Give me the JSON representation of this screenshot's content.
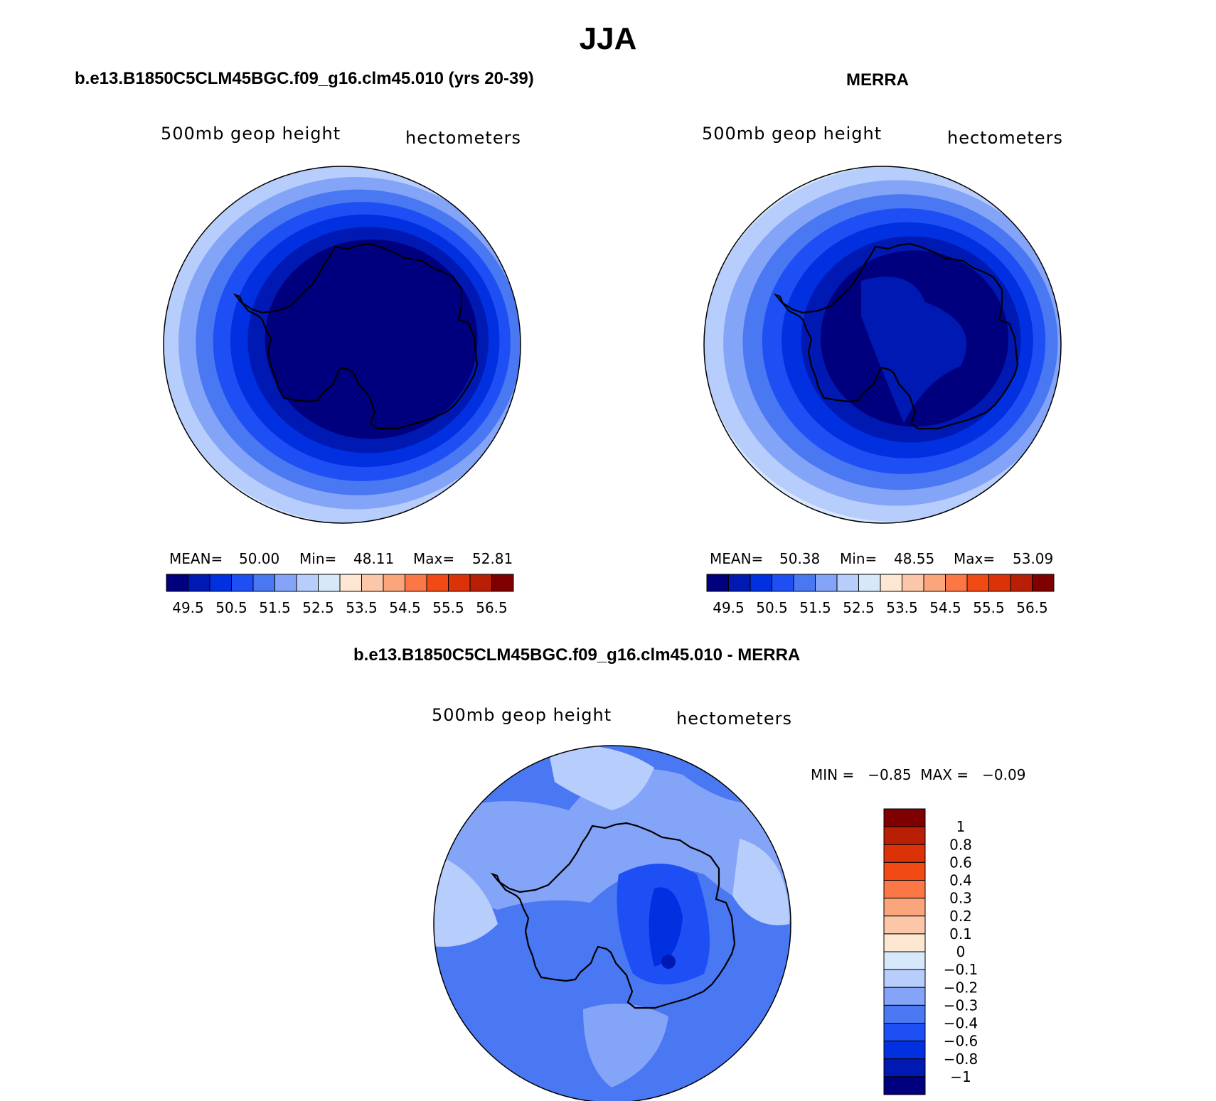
{
  "title": "JJA",
  "panels": [
    {
      "title": "b.e13.B1850C5CLM45BGC.f09_g16.clm45.010 (yrs 20-39)",
      "left_label": "500mb  geop  height",
      "right_label": "hectometers",
      "stats": {
        "mean_label": "MEAN=",
        "mean": "50.00",
        "min_label": "Min=",
        "min": "48.11",
        "max_label": "Max=",
        "max": "52.81"
      }
    },
    {
      "title": "MERRA",
      "left_label": "500mb  geop  height",
      "right_label": "hectometers",
      "stats": {
        "mean_label": "MEAN=",
        "mean": "50.38",
        "min_label": "Min=",
        "min": "48.55",
        "max_label": "Max=",
        "max": "53.09"
      }
    },
    {
      "title": "b.e13.B1850C5CLM45BGC.f09_g16.clm45.010 - MERRA",
      "left_label": "500mb  geop  height",
      "right_label": "hectometers",
      "stats": {
        "text": "MIN =   −0.85  MAX =   −0.09"
      }
    }
  ],
  "chart_data": [
    {
      "type": "heatmap",
      "subtype": "polar-stereographic contour map",
      "title": "b.e13.B1850C5CLM45BGC.f09_g16.clm45.010 (yrs 20-39)",
      "variable": "500mb geop height",
      "units": "hectometers",
      "mean": 50.0,
      "min": 48.11,
      "max": 52.81,
      "contour_levels": [
        49.5,
        50,
        50.5,
        51,
        51.5,
        52,
        52.5,
        53,
        53.5,
        54,
        54.5,
        55,
        55.5,
        56,
        56.5
      ],
      "colorbar_tick_labels": [
        "49.5",
        "50.5",
        "51.5",
        "52.5",
        "53.5",
        "54.5",
        "55.5",
        "56.5"
      ],
      "colors": [
        "#00007f",
        "#0019b3",
        "#0030e0",
        "#1e4ff5",
        "#4a78f2",
        "#84a4f7",
        "#b7cdfb",
        "#d8e8fb",
        "#fde7d3",
        "#fcc6a8",
        "#fba57c",
        "#fb7745",
        "#f24a15",
        "#dc3208",
        "#b81f05",
        "#7f0000"
      ]
    },
    {
      "type": "heatmap",
      "subtype": "polar-stereographic contour map",
      "title": "MERRA",
      "variable": "500mb geop height",
      "units": "hectometers",
      "mean": 50.38,
      "min": 48.55,
      "max": 53.09,
      "contour_levels": [
        49.5,
        50,
        50.5,
        51,
        51.5,
        52,
        52.5,
        53,
        53.5,
        54,
        54.5,
        55,
        55.5,
        56,
        56.5
      ],
      "colorbar_tick_labels": [
        "49.5",
        "50.5",
        "51.5",
        "52.5",
        "53.5",
        "54.5",
        "55.5",
        "56.5"
      ],
      "colors": [
        "#00007f",
        "#0019b3",
        "#0030e0",
        "#1e4ff5",
        "#4a78f2",
        "#84a4f7",
        "#b7cdfb",
        "#d8e8fb",
        "#fde7d3",
        "#fcc6a8",
        "#fba57c",
        "#fb7745",
        "#f24a15",
        "#dc3208",
        "#b81f05",
        "#7f0000"
      ]
    },
    {
      "type": "heatmap",
      "subtype": "polar-stereographic contour map (difference)",
      "title": "b.e13.B1850C5CLM45BGC.f09_g16.clm45.010 - MERRA",
      "variable": "500mb geop height",
      "units": "hectometers",
      "min": -0.85,
      "max": -0.09,
      "contour_levels": [
        -1,
        -0.8,
        -0.6,
        -0.4,
        -0.3,
        -0.2,
        -0.1,
        0,
        0.1,
        0.2,
        0.3,
        0.4,
        0.6,
        0.8,
        1
      ],
      "colorbar_tick_labels": [
        "1",
        "0.8",
        "0.6",
        "0.4",
        "0.3",
        "0.2",
        "0.1",
        "0",
        "−0.1",
        "−0.2",
        "−0.3",
        "−0.4",
        "−0.6",
        "−0.8",
        "−1"
      ],
      "colors": [
        "#7f0000",
        "#b81f05",
        "#dc3208",
        "#f24a15",
        "#fb7745",
        "#fba57c",
        "#fcc6a8",
        "#fde7d3",
        "#d8e8fb",
        "#b7cdfb",
        "#84a4f7",
        "#4a78f2",
        "#1e4ff5",
        "#0030e0",
        "#0019b3",
        "#00007f"
      ]
    }
  ]
}
